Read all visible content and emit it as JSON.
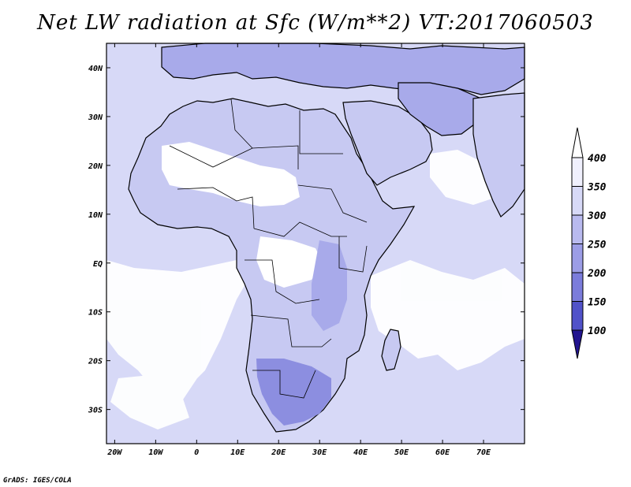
{
  "title": "Net LW radiation at Sfc (W/m**2) VT:2017060503",
  "footer": "GrADS: IGES/COLA",
  "colors": {
    "ocean": "#d7d9f7",
    "land_light": "#c7c9f2",
    "land_mid": "#a8aaea",
    "land_dark": "#8c8ee0",
    "land_darker": "#7878d8",
    "white_patch": "#ffffff",
    "outline": "#000000"
  },
  "map": {
    "lon_range": [
      -22,
      80
    ],
    "lat_range": [
      -37,
      45
    ],
    "lat_ticks": [
      {
        "value": 40,
        "label": "40N"
      },
      {
        "value": 30,
        "label": "30N"
      },
      {
        "value": 20,
        "label": "20N"
      },
      {
        "value": 10,
        "label": "10N"
      },
      {
        "value": 0,
        "label": "EQ"
      },
      {
        "value": -10,
        "label": "10S"
      },
      {
        "value": -20,
        "label": "20S"
      },
      {
        "value": -30,
        "label": "30S"
      }
    ],
    "lon_ticks": [
      {
        "value": -20,
        "label": "20W"
      },
      {
        "value": -10,
        "label": "10W"
      },
      {
        "value": 0,
        "label": "0"
      },
      {
        "value": 10,
        "label": "10E"
      },
      {
        "value": 20,
        "label": "20E"
      },
      {
        "value": 30,
        "label": "30E"
      },
      {
        "value": 40,
        "label": "40E"
      },
      {
        "value": 50,
        "label": "50E"
      },
      {
        "value": 60,
        "label": "60E"
      },
      {
        "value": 70,
        "label": "70E"
      }
    ]
  },
  "colorbar": {
    "labels": [
      "400",
      "350",
      "300",
      "250",
      "200",
      "150",
      "100"
    ],
    "fills": [
      "#f0f0fd",
      "#d7d9f7",
      "#b9baef",
      "#9c9de6",
      "#7b7cdb",
      "#5152c9",
      "#2b1eaf"
    ],
    "over_color": "#ffffff",
    "under_color": "#22148f"
  }
}
